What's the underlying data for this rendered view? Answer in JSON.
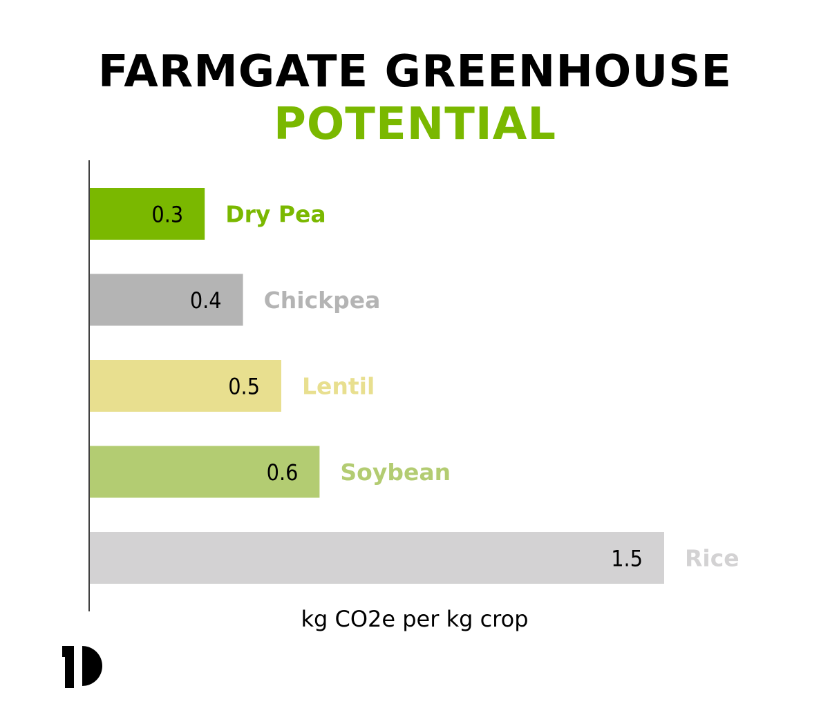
{
  "title": {
    "line1": "FARMGATE GREENHOUSE",
    "line2": "POTENTIAL",
    "line1_color": "#000000",
    "line2_color": "#7ab800"
  },
  "chart_data": {
    "type": "bar",
    "orientation": "horizontal",
    "categories": [
      "Dry Pea",
      "Chickpea",
      "Lentil",
      "Soybean",
      "Rice"
    ],
    "values": [
      0.3,
      0.4,
      0.5,
      0.6,
      1.5
    ],
    "value_labels": [
      "0.3",
      "0.4",
      "0.5",
      "0.6",
      "1.5"
    ],
    "colors": [
      "#7ab800",
      "#b4b4b4",
      "#e8df8f",
      "#b3cc72",
      "#d3d2d3"
    ],
    "label_colors": [
      "#7ab800",
      "#b4b4b4",
      "#e8df8f",
      "#b3cc72",
      "#d3d2d3"
    ],
    "xlabel": "kg CO2e per kg crop",
    "ylabel": "",
    "xlim": [
      0,
      1.5
    ],
    "grid": false
  },
  "logo": {
    "icon": "p-logo-icon"
  }
}
